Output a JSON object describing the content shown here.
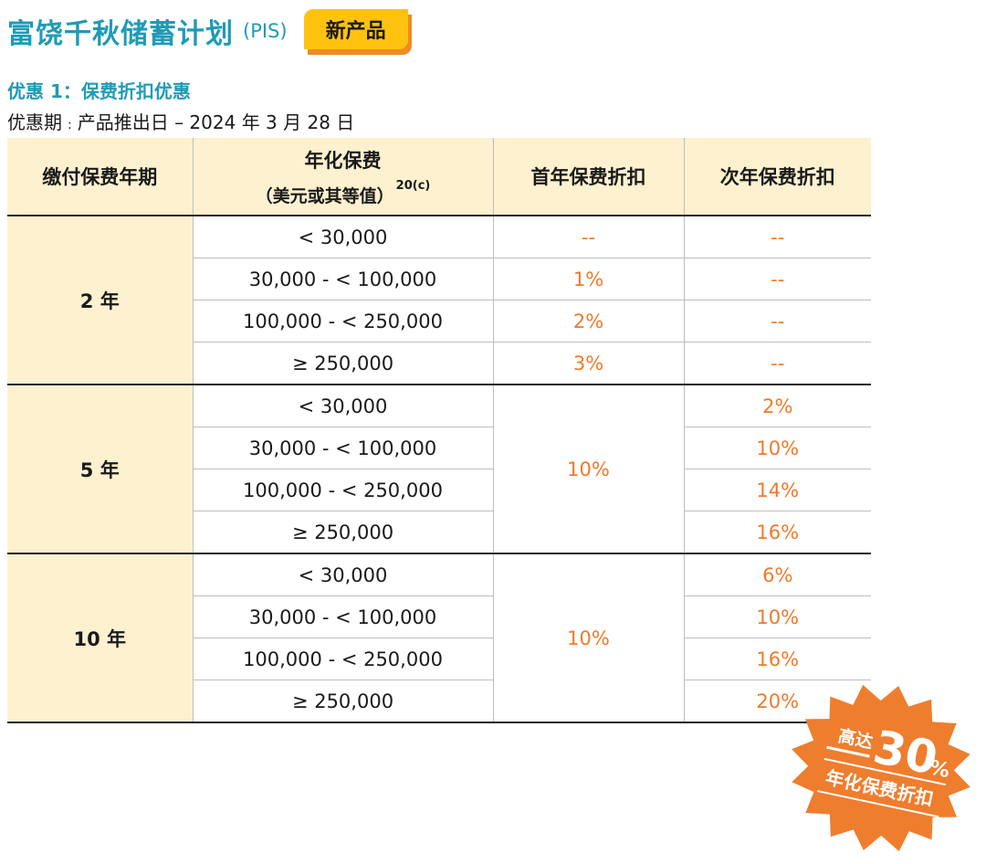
{
  "header": {
    "title": "富饶千秋储蓄计划",
    "code": "(PIS)",
    "badge": "新产品"
  },
  "offer": {
    "title": "优惠 1：保费折扣优惠",
    "period_label": "优惠期",
    "period_value": "产品推出日 – 2024 年 3 月 28 日"
  },
  "table": {
    "headers": {
      "term": "缴付保费年期",
      "premium_line1": "年化保费",
      "premium_line2": "（美元或其等值）",
      "premium_note": "20(c)",
      "first_year": "首年保费折扣",
      "second_year": "次年保费折扣"
    },
    "groups": [
      {
        "term": "2 年",
        "rows": [
          {
            "range": "< 30,000",
            "first": "--",
            "second": "--"
          },
          {
            "range": "30,000 - < 100,000",
            "first": "1%",
            "second": "--"
          },
          {
            "range": "100,000 - < 250,000",
            "first": "2%",
            "second": "--"
          },
          {
            "range": "≥ 250,000",
            "first": "3%",
            "second": "--"
          }
        ]
      },
      {
        "term": "5 年",
        "first_merged": "10%",
        "rows": [
          {
            "range": "< 30,000",
            "second": "2%"
          },
          {
            "range": "30,000 - < 100,000",
            "second": "10%"
          },
          {
            "range": "100,000 - < 250,000",
            "second": "14%"
          },
          {
            "range": "≥ 250,000",
            "second": "16%"
          }
        ]
      },
      {
        "term": "10 年",
        "first_merged": "10%",
        "rows": [
          {
            "range": "< 30,000",
            "second": "6%"
          },
          {
            "range": "30,000 - < 100,000",
            "second": "10%"
          },
          {
            "range": "100,000 - < 250,000",
            "second": "16%"
          },
          {
            "range": "≥ 250,000",
            "second": "20%"
          }
        ]
      }
    ]
  },
  "burst": {
    "prefix": "高达",
    "number": "30",
    "percent": "%",
    "caption": "年化保费折扣",
    "color": "#ef7d2e"
  }
}
